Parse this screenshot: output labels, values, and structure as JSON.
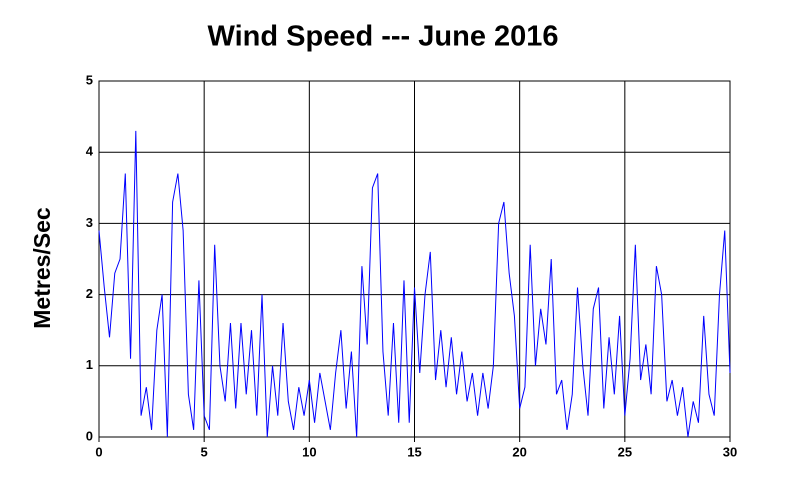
{
  "chart_data": {
    "type": "line",
    "title": "Wind Speed --- June 2016",
    "ylabel": "Metres/Sec",
    "x": [
      0,
      0.25,
      0.5,
      0.75,
      1,
      1.25,
      1.5,
      1.75,
      2,
      2.25,
      2.5,
      2.75,
      3,
      3.25,
      3.5,
      3.75,
      4,
      4.25,
      4.5,
      4.75,
      5,
      5.25,
      5.5,
      5.75,
      6,
      6.25,
      6.5,
      6.75,
      7,
      7.25,
      7.5,
      7.75,
      8,
      8.25,
      8.5,
      8.75,
      9,
      9.25,
      9.5,
      9.75,
      10,
      10.25,
      10.5,
      10.75,
      11,
      11.25,
      11.5,
      11.75,
      12,
      12.25,
      12.5,
      12.75,
      13,
      13.25,
      13.5,
      13.75,
      14,
      14.25,
      14.5,
      14.75,
      15,
      15.25,
      15.5,
      15.75,
      16,
      16.25,
      16.5,
      16.75,
      17,
      17.25,
      17.5,
      17.75,
      18,
      18.25,
      18.5,
      18.75,
      19,
      19.25,
      19.5,
      19.75,
      20,
      20.25,
      20.5,
      20.75,
      21,
      21.25,
      21.5,
      21.75,
      22,
      22.25,
      22.5,
      22.75,
      23,
      23.25,
      23.5,
      23.75,
      24,
      24.25,
      24.5,
      24.75,
      25,
      25.25,
      25.5,
      25.75,
      26,
      26.25,
      26.5,
      26.75,
      27,
      27.25,
      27.5,
      27.75,
      28,
      28.25,
      28.5,
      28.75,
      29,
      29.25,
      29.5,
      29.75,
      30
    ],
    "series": [
      {
        "color": "#0000ff",
        "values": [
          2.9,
          2.1,
          1.4,
          2.3,
          2.5,
          3.7,
          1.1,
          4.3,
          0.3,
          0.7,
          0.1,
          1.5,
          2.0,
          0.0,
          3.3,
          3.7,
          2.9,
          0.6,
          0.1,
          2.2,
          0.3,
          0.1,
          2.7,
          1.0,
          0.5,
          1.6,
          0.4,
          1.6,
          0.6,
          1.5,
          0.3,
          2.0,
          0.0,
          1.0,
          0.3,
          1.6,
          0.5,
          0.1,
          0.7,
          0.3,
          0.8,
          0.2,
          0.9,
          0.5,
          0.1,
          0.9,
          1.5,
          0.4,
          1.2,
          0.0,
          2.4,
          1.3,
          3.5,
          3.7,
          1.2,
          0.3,
          1.6,
          0.2,
          2.2,
          0.2,
          2.1,
          0.9,
          2.0,
          2.6,
          0.8,
          1.5,
          0.7,
          1.4,
          0.6,
          1.2,
          0.5,
          0.9,
          0.3,
          0.9,
          0.4,
          1.0,
          3.0,
          3.3,
          2.3,
          1.7,
          0.4,
          0.7,
          2.7,
          1.0,
          1.8,
          1.3,
          2.5,
          0.6,
          0.8,
          0.1,
          0.6,
          2.1,
          1.0,
          0.3,
          1.8,
          2.1,
          0.4,
          1.4,
          0.6,
          1.7,
          0.3,
          1.1,
          2.7,
          0.8,
          1.3,
          0.6,
          2.4,
          2.0,
          0.5,
          0.8,
          0.3,
          0.7,
          0.0,
          0.5,
          0.2,
          1.7,
          0.6,
          0.3,
          2.0,
          2.9,
          0.9
        ]
      }
    ],
    "xlim": [
      0,
      30
    ],
    "xticks": [
      0,
      5,
      10,
      15,
      20,
      25,
      30
    ],
    "ylim": [
      0,
      5
    ],
    "yticks": [
      0,
      1,
      2,
      3,
      4,
      5
    ],
    "grid": true
  }
}
